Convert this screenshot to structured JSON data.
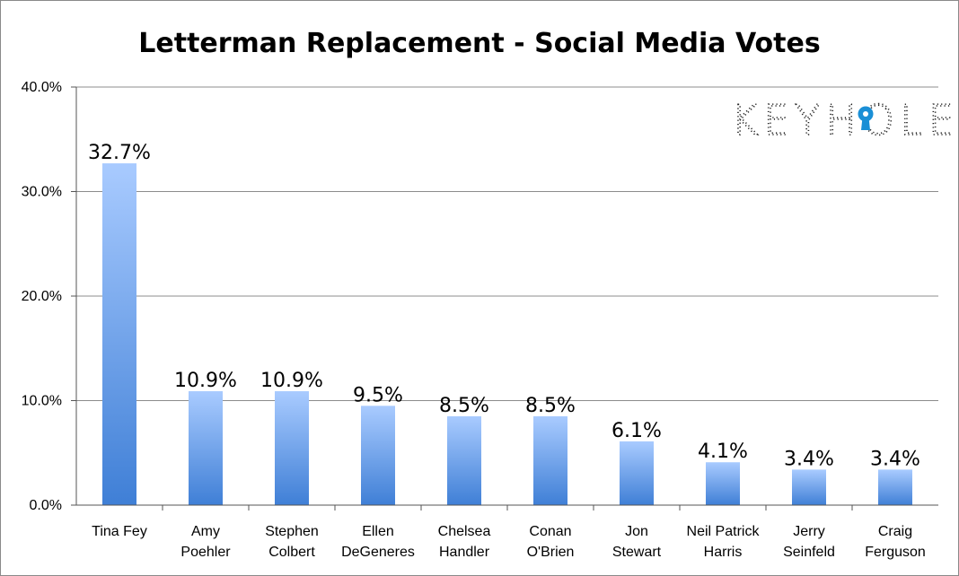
{
  "logo": {
    "text": "KEYHOLE",
    "accent": "#1a8fd6"
  },
  "chart_data": {
    "type": "bar",
    "title": "Letterman Replacement - Social Media Votes",
    "xlabel": "",
    "ylabel": "",
    "ylim": [
      0,
      40
    ],
    "yticks": [
      0,
      10,
      20,
      30,
      40
    ],
    "ytick_labels": [
      "0.0%",
      "10.0%",
      "20.0%",
      "30.0%",
      "40.0%"
    ],
    "grid": true,
    "categories": [
      [
        "Tina Fey"
      ],
      [
        "Amy",
        "Poehler"
      ],
      [
        "Stephen",
        "Colbert"
      ],
      [
        "Ellen",
        "DeGeneres"
      ],
      [
        "Chelsea",
        "Handler"
      ],
      [
        "Conan",
        "O'Brien"
      ],
      [
        "Jon",
        "Stewart"
      ],
      [
        "Neil Patrick",
        "Harris"
      ],
      [
        "Jerry",
        "Seinfeld"
      ],
      [
        "Craig",
        "Ferguson"
      ]
    ],
    "values": [
      32.7,
      10.9,
      10.9,
      9.5,
      8.5,
      8.5,
      6.1,
      4.1,
      3.4,
      3.4
    ],
    "data_labels": [
      "32.7%",
      "10.9%",
      "10.9%",
      "9.5%",
      "8.5%",
      "8.5%",
      "6.1%",
      "4.1%",
      "3.4%",
      "3.4%"
    ],
    "bar_color_top": "#a9cbff",
    "bar_color_bottom": "#3f7fd6"
  }
}
